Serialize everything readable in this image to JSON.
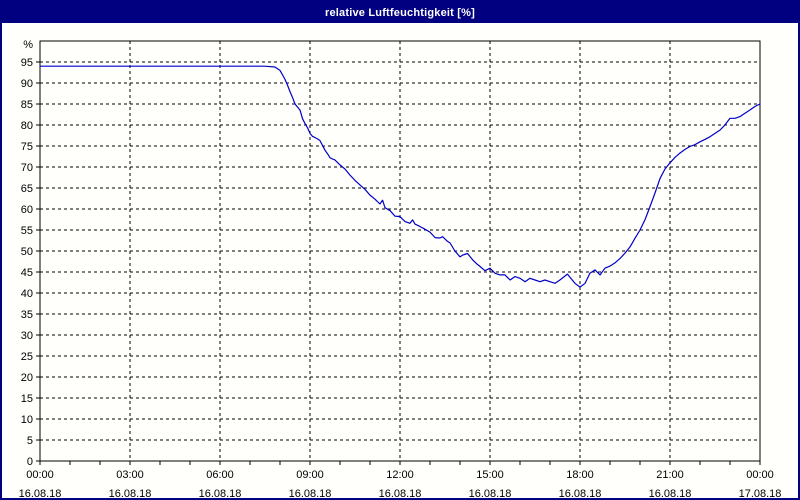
{
  "window": {
    "title": "relative Luftfeuchtigkeit [%]",
    "titlebar_color": "#000080",
    "border_color": "#000080",
    "background_color": "#fffffb"
  },
  "chart_data": {
    "type": "line",
    "title": "relative Luftfeuchtigkeit [%]",
    "unit_label": "%",
    "series_name": "relative Luftfeuchtigkeit",
    "series_color": "#0000c8",
    "axis_color": "#000000",
    "grid": "dashed",
    "legend_position": "none",
    "x_axis": {
      "range_hours": [
        0,
        24
      ],
      "major_tick_hours": 3,
      "minor_tick_hours": 1,
      "tick_labels": [
        {
          "time": "00:00",
          "date": "16.08.18"
        },
        {
          "time": "03:00",
          "date": "16.08.18"
        },
        {
          "time": "06:00",
          "date": "16.08.18"
        },
        {
          "time": "09:00",
          "date": "16.08.18"
        },
        {
          "time": "12:00",
          "date": "16.08.18"
        },
        {
          "time": "15:00",
          "date": "16.08.18"
        },
        {
          "time": "18:00",
          "date": "16.08.18"
        },
        {
          "time": "21:00",
          "date": "16.08.18"
        },
        {
          "time": "00:00",
          "date": "17.08.18"
        }
      ]
    },
    "y_axis": {
      "range": [
        0,
        100
      ],
      "tick_step": 5,
      "tick_labels": [
        95,
        90,
        85,
        80,
        75,
        70,
        65,
        60,
        55,
        50,
        45,
        40,
        35,
        30,
        25,
        20,
        15,
        10,
        5,
        0
      ]
    },
    "points": [
      [
        0.0,
        94
      ],
      [
        1.0,
        94
      ],
      [
        2.0,
        94
      ],
      [
        3.0,
        94
      ],
      [
        4.0,
        94
      ],
      [
        5.0,
        94
      ],
      [
        6.0,
        94
      ],
      [
        7.0,
        94
      ],
      [
        7.5,
        94
      ],
      [
        7.83,
        93.8
      ],
      [
        8.0,
        93
      ],
      [
        8.08,
        92
      ],
      [
        8.17,
        90.8
      ],
      [
        8.25,
        89.5
      ],
      [
        8.33,
        88
      ],
      [
        8.42,
        86.5
      ],
      [
        8.5,
        85
      ],
      [
        8.58,
        84.3
      ],
      [
        8.67,
        83.5
      ],
      [
        8.75,
        81.5
      ],
      [
        8.83,
        80.4
      ],
      [
        8.92,
        79.3
      ],
      [
        9.0,
        78
      ],
      [
        9.08,
        77.3
      ],
      [
        9.17,
        77
      ],
      [
        9.25,
        76.7
      ],
      [
        9.33,
        76.3
      ],
      [
        9.5,
        74
      ],
      [
        9.58,
        73.2
      ],
      [
        9.67,
        72.2
      ],
      [
        9.75,
        71.9
      ],
      [
        9.83,
        71.7
      ],
      [
        10.0,
        70.5
      ],
      [
        10.17,
        69.5
      ],
      [
        10.33,
        68.1
      ],
      [
        10.5,
        66.8
      ],
      [
        10.67,
        65.7
      ],
      [
        10.83,
        64.7
      ],
      [
        11.0,
        63.3
      ],
      [
        11.17,
        62.3
      ],
      [
        11.33,
        61.2
      ],
      [
        11.42,
        62.1
      ],
      [
        11.5,
        60.3
      ],
      [
        11.67,
        59.6
      ],
      [
        11.83,
        58.3
      ],
      [
        12.0,
        58.2
      ],
      [
        12.08,
        57.6
      ],
      [
        12.17,
        57
      ],
      [
        12.33,
        56.6
      ],
      [
        12.42,
        57.4
      ],
      [
        12.5,
        56.4
      ],
      [
        12.67,
        55.8
      ],
      [
        12.83,
        55.2
      ],
      [
        13.0,
        54.5
      ],
      [
        13.17,
        53.2
      ],
      [
        13.33,
        53.1
      ],
      [
        13.42,
        53.4
      ],
      [
        13.58,
        52.3
      ],
      [
        13.67,
        51.9
      ],
      [
        13.83,
        50
      ],
      [
        14.0,
        48.6
      ],
      [
        14.08,
        49
      ],
      [
        14.25,
        49.4
      ],
      [
        14.42,
        47.9
      ],
      [
        14.58,
        46.8
      ],
      [
        14.67,
        46.3
      ],
      [
        14.83,
        45.3
      ],
      [
        15.0,
        45.9
      ],
      [
        15.17,
        44.7
      ],
      [
        15.33,
        44.3
      ],
      [
        15.5,
        44.3
      ],
      [
        15.67,
        43.1
      ],
      [
        15.83,
        43.9
      ],
      [
        16.0,
        43.5
      ],
      [
        16.17,
        42.7
      ],
      [
        16.33,
        43.5
      ],
      [
        16.5,
        43.1
      ],
      [
        16.67,
        42.7
      ],
      [
        16.83,
        43.1
      ],
      [
        17.0,
        42.7
      ],
      [
        17.17,
        42.3
      ],
      [
        17.33,
        43.1
      ],
      [
        17.58,
        44.5
      ],
      [
        17.83,
        42.3
      ],
      [
        18.0,
        41.4
      ],
      [
        18.17,
        42.3
      ],
      [
        18.33,
        44.7
      ],
      [
        18.5,
        45.5
      ],
      [
        18.67,
        44.3
      ],
      [
        18.83,
        45.9
      ],
      [
        19.0,
        46.4
      ],
      [
        19.17,
        47.2
      ],
      [
        19.33,
        48.2
      ],
      [
        19.5,
        49.5
      ],
      [
        19.67,
        51
      ],
      [
        19.83,
        53
      ],
      [
        20.0,
        55
      ],
      [
        20.17,
        57.5
      ],
      [
        20.33,
        60.5
      ],
      [
        20.5,
        63.8
      ],
      [
        20.67,
        67.3
      ],
      [
        20.83,
        69.5
      ],
      [
        21.0,
        71
      ],
      [
        21.17,
        72.3
      ],
      [
        21.33,
        73.3
      ],
      [
        21.5,
        74.2
      ],
      [
        21.67,
        74.9
      ],
      [
        21.83,
        75.3
      ],
      [
        22.0,
        76
      ],
      [
        22.17,
        76.6
      ],
      [
        22.33,
        77.2
      ],
      [
        22.5,
        78
      ],
      [
        22.67,
        78.8
      ],
      [
        22.83,
        80
      ],
      [
        23.0,
        81.6
      ],
      [
        23.17,
        81.6
      ],
      [
        23.33,
        82
      ],
      [
        23.5,
        82.8
      ],
      [
        23.67,
        83.6
      ],
      [
        23.83,
        84.4
      ],
      [
        24.0,
        85
      ]
    ]
  }
}
